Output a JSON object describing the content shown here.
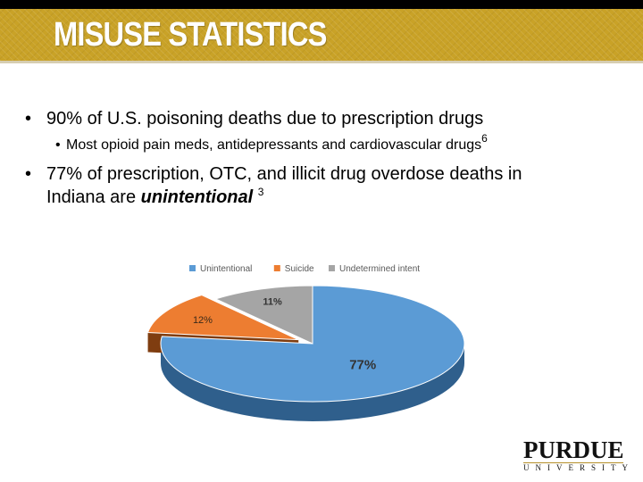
{
  "slide": {
    "title": "MISUSE STATISTICS",
    "bullets": {
      "b1": "90% of U.S. poisoning deaths due to prescription drugs",
      "b2": "Most opioid pain meds, antidepressants and cardiovascular drugs",
      "b2_sup": "6",
      "b3_line1": "77% of prescription, OTC, and illicit drug overdose deaths in",
      "b3_line2_pre": "Indiana are ",
      "b3_line2_em": "unintentional",
      "b3_sup": "3"
    },
    "bullet_glyph": "•",
    "logo": {
      "main": "PURDUE",
      "sub": "UNIVERSITY"
    }
  },
  "chart_data": {
    "type": "pie",
    "style": "3d",
    "legend_position": "top",
    "series": [
      {
        "name": "Unintentional",
        "value": 77,
        "label": "77%",
        "color": "#5b9bd5",
        "side": "#2f5f8c"
      },
      {
        "name": "Suicide",
        "value": 12,
        "label": "12%",
        "color": "#ed7d31",
        "side": "#7f3d10",
        "exploded": true
      },
      {
        "name": "Undetermined intent",
        "value": 11,
        "label": "11%",
        "color": "#a5a5a5",
        "side": "#5e5e5e"
      }
    ]
  }
}
